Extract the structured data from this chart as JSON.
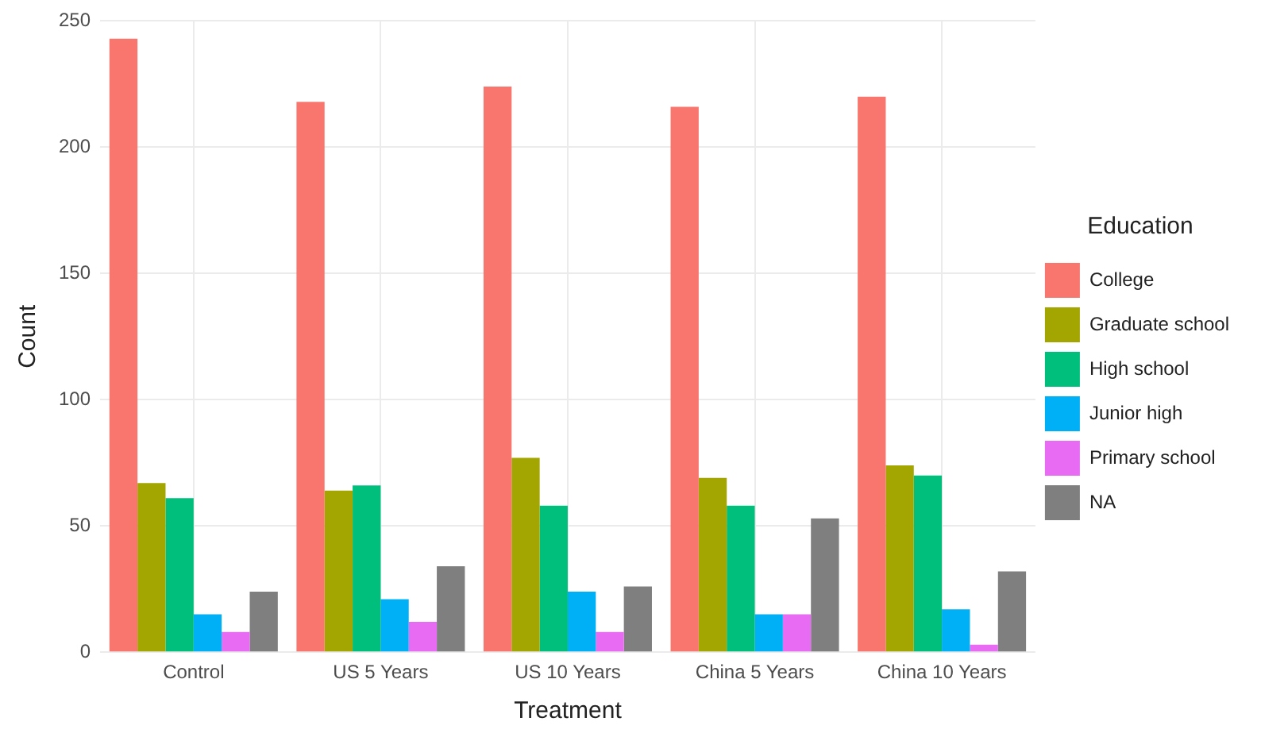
{
  "chart_data": {
    "type": "bar",
    "xlabel": "Treatment",
    "ylabel": "Count",
    "legend_title": "Education",
    "categories": [
      "Control",
      "US 5 Years",
      "US 10 Years",
      "China 5 Years",
      "China 10 Years"
    ],
    "series": [
      {
        "name": "College",
        "color": "#f8766d",
        "values": [
          243,
          218,
          224,
          216,
          220
        ]
      },
      {
        "name": "Graduate school",
        "color": "#a3a500",
        "values": [
          67,
          64,
          77,
          69,
          74
        ]
      },
      {
        "name": "High school",
        "color": "#00bf7d",
        "values": [
          61,
          66,
          58,
          58,
          70
        ]
      },
      {
        "name": "Junior high",
        "color": "#00b0f6",
        "values": [
          15,
          21,
          24,
          15,
          17
        ]
      },
      {
        "name": "Primary school",
        "color": "#e76bf3",
        "values": [
          8,
          12,
          8,
          15,
          3
        ]
      },
      {
        "name": "NA",
        "color": "#7f7f7f",
        "values": [
          24,
          34,
          26,
          53,
          32
        ]
      }
    ],
    "ylim": [
      0,
      250
    ],
    "yticks": [
      0,
      50,
      100,
      150,
      200,
      250
    ],
    "grid": true,
    "legend": "right"
  }
}
